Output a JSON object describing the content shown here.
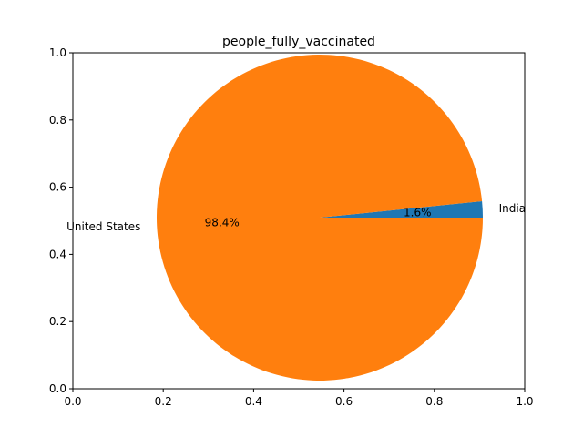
{
  "chart_data": {
    "type": "pie",
    "title": "people_fully_vaccinated",
    "slices": [
      {
        "label": "India",
        "percent": 1.6,
        "pct_text": "1.6%",
        "color": "#1f77b4"
      },
      {
        "label": "United States",
        "percent": 98.4,
        "pct_text": "98.4%",
        "color": "#ff7f0e"
      }
    ],
    "xlim": [
      0,
      1
    ],
    "ylim": [
      0,
      1
    ],
    "xticks": [
      "0.0",
      "0.2",
      "0.4",
      "0.6",
      "0.8",
      "1.0"
    ],
    "yticks": [
      "0.0",
      "0.2",
      "0.4",
      "0.6",
      "0.8",
      "1.0"
    ],
    "grid": false,
    "legend": "none"
  }
}
